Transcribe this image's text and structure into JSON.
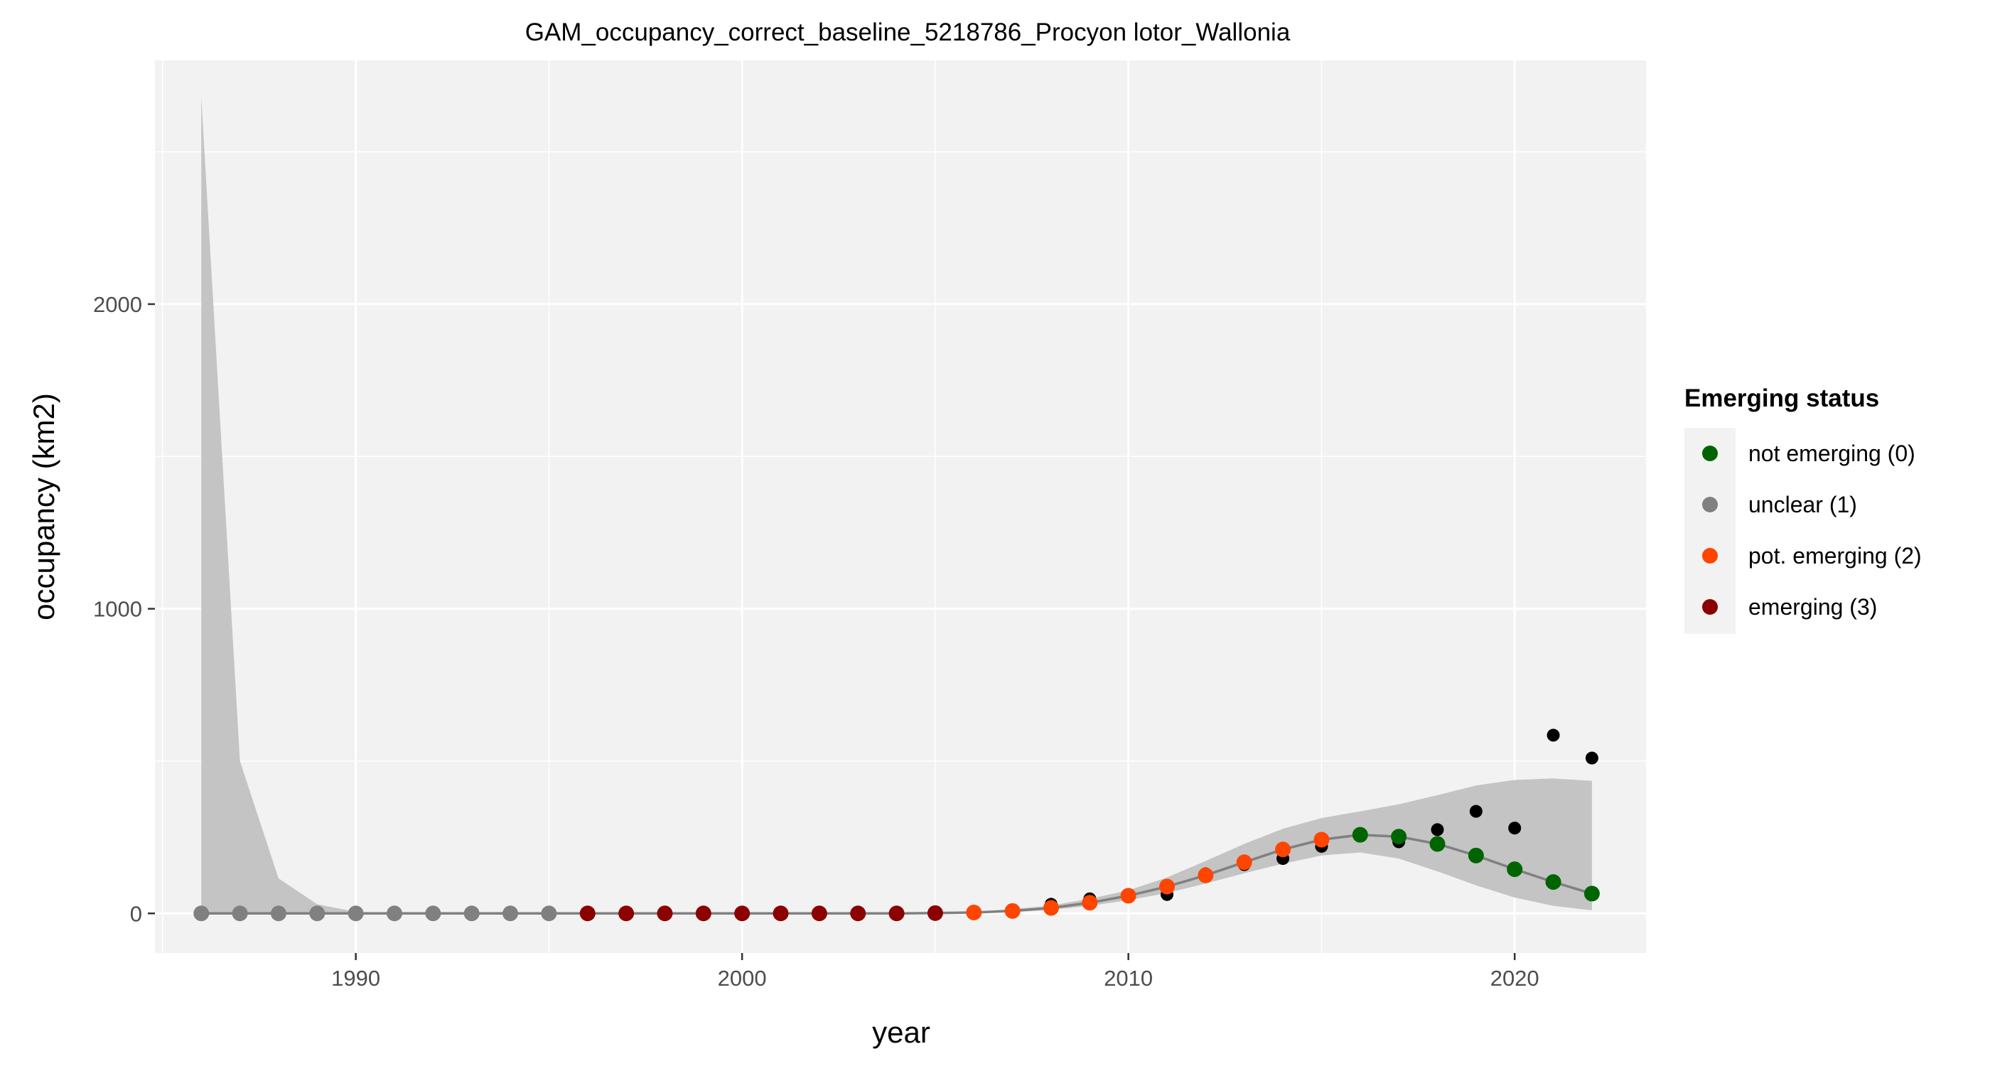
{
  "chart_data": {
    "type": "line",
    "title": "GAM_occupancy_correct_baseline_5218786_Procyon lotor_Wallonia",
    "xlabel": "year",
    "ylabel": "occupancy (km2)",
    "xlim": [
      1984.8,
      2023.4
    ],
    "ylim": [
      -130,
      2800
    ],
    "x_ticks": [
      1990,
      2000,
      2010,
      2020
    ],
    "x_tick_labels": [
      "1990",
      "2000",
      "2010",
      "2020"
    ],
    "y_ticks": [
      0,
      1000,
      2000
    ],
    "y_tick_labels": [
      "0",
      "1000",
      "2000"
    ],
    "grid": true,
    "legend_position": "right",
    "legend": {
      "title": "Emerging status",
      "entries": [
        {
          "label": "not emerging (0)",
          "color": "#006400"
        },
        {
          "label": "unclear (1)",
          "color": "#808080"
        },
        {
          "label": "pot. emerging (2)",
          "color": "#ff4500"
        },
        {
          "label": "emerging (3)",
          "color": "#8b0000"
        }
      ]
    },
    "colors": {
      "panel": "#f2f2f2",
      "grid": "#ffffff",
      "ribbon": "#c4c4c4",
      "line": "#808080",
      "observed": "#000000"
    },
    "observed": {
      "x": [
        1986,
        1987,
        1988,
        1989,
        1990,
        1991,
        1992,
        1993,
        1994,
        1995,
        1996,
        1997,
        1998,
        1999,
        2000,
        2001,
        2002,
        2003,
        2004,
        2005,
        2006,
        2007,
        2008,
        2009,
        2010,
        2011,
        2012,
        2013,
        2014,
        2015,
        2016,
        2017,
        2018,
        2019,
        2020,
        2021,
        2022
      ],
      "y": [
        0,
        0,
        0,
        0,
        0,
        0,
        0,
        0,
        0,
        0,
        0,
        0,
        0,
        0,
        0,
        0,
        0,
        0,
        0,
        0,
        2,
        10,
        30,
        48,
        55,
        62,
        130,
        160,
        180,
        220,
        255,
        235,
        275,
        335,
        280,
        585,
        510
      ]
    },
    "fitted": {
      "x": [
        1986,
        1987,
        1988,
        1989,
        1990,
        1991,
        1992,
        1993,
        1994,
        1995,
        1996,
        1997,
        1998,
        1999,
        2000,
        2001,
        2002,
        2003,
        2004,
        2005,
        2006,
        2007,
        2008,
        2009,
        2010,
        2011,
        2012,
        2013,
        2014,
        2015,
        2016,
        2017,
        2018,
        2019,
        2020,
        2021,
        2022
      ],
      "y": [
        0,
        0,
        0,
        0,
        0,
        0,
        0,
        0,
        0,
        0,
        0,
        0,
        0,
        0,
        0,
        0,
        0,
        0,
        0,
        1,
        3,
        8,
        18,
        35,
        58,
        88,
        125,
        168,
        210,
        242,
        258,
        252,
        228,
        190,
        145,
        103,
        65
      ],
      "lower": [
        0,
        0,
        0,
        0,
        0,
        0,
        0,
        0,
        0,
        0,
        0,
        0,
        0,
        0,
        0,
        0,
        0,
        0,
        0,
        0,
        1,
        4,
        12,
        25,
        43,
        67,
        98,
        132,
        163,
        190,
        200,
        180,
        138,
        92,
        52,
        25,
        10
      ],
      "upper": [
        2680,
        500,
        115,
        30,
        5,
        1,
        0,
        0,
        0,
        0,
        0,
        0,
        0,
        0,
        0,
        0,
        0,
        0,
        1,
        2,
        5,
        14,
        26,
        48,
        76,
        118,
        172,
        228,
        278,
        313,
        335,
        358,
        388,
        420,
        438,
        443,
        435
      ],
      "status": [
        1,
        1,
        1,
        1,
        1,
        1,
        1,
        1,
        1,
        1,
        3,
        3,
        3,
        3,
        3,
        3,
        3,
        3,
        3,
        3,
        2,
        2,
        2,
        2,
        2,
        2,
        2,
        2,
        2,
        2,
        0,
        0,
        0,
        0,
        0,
        0,
        0
      ]
    }
  }
}
